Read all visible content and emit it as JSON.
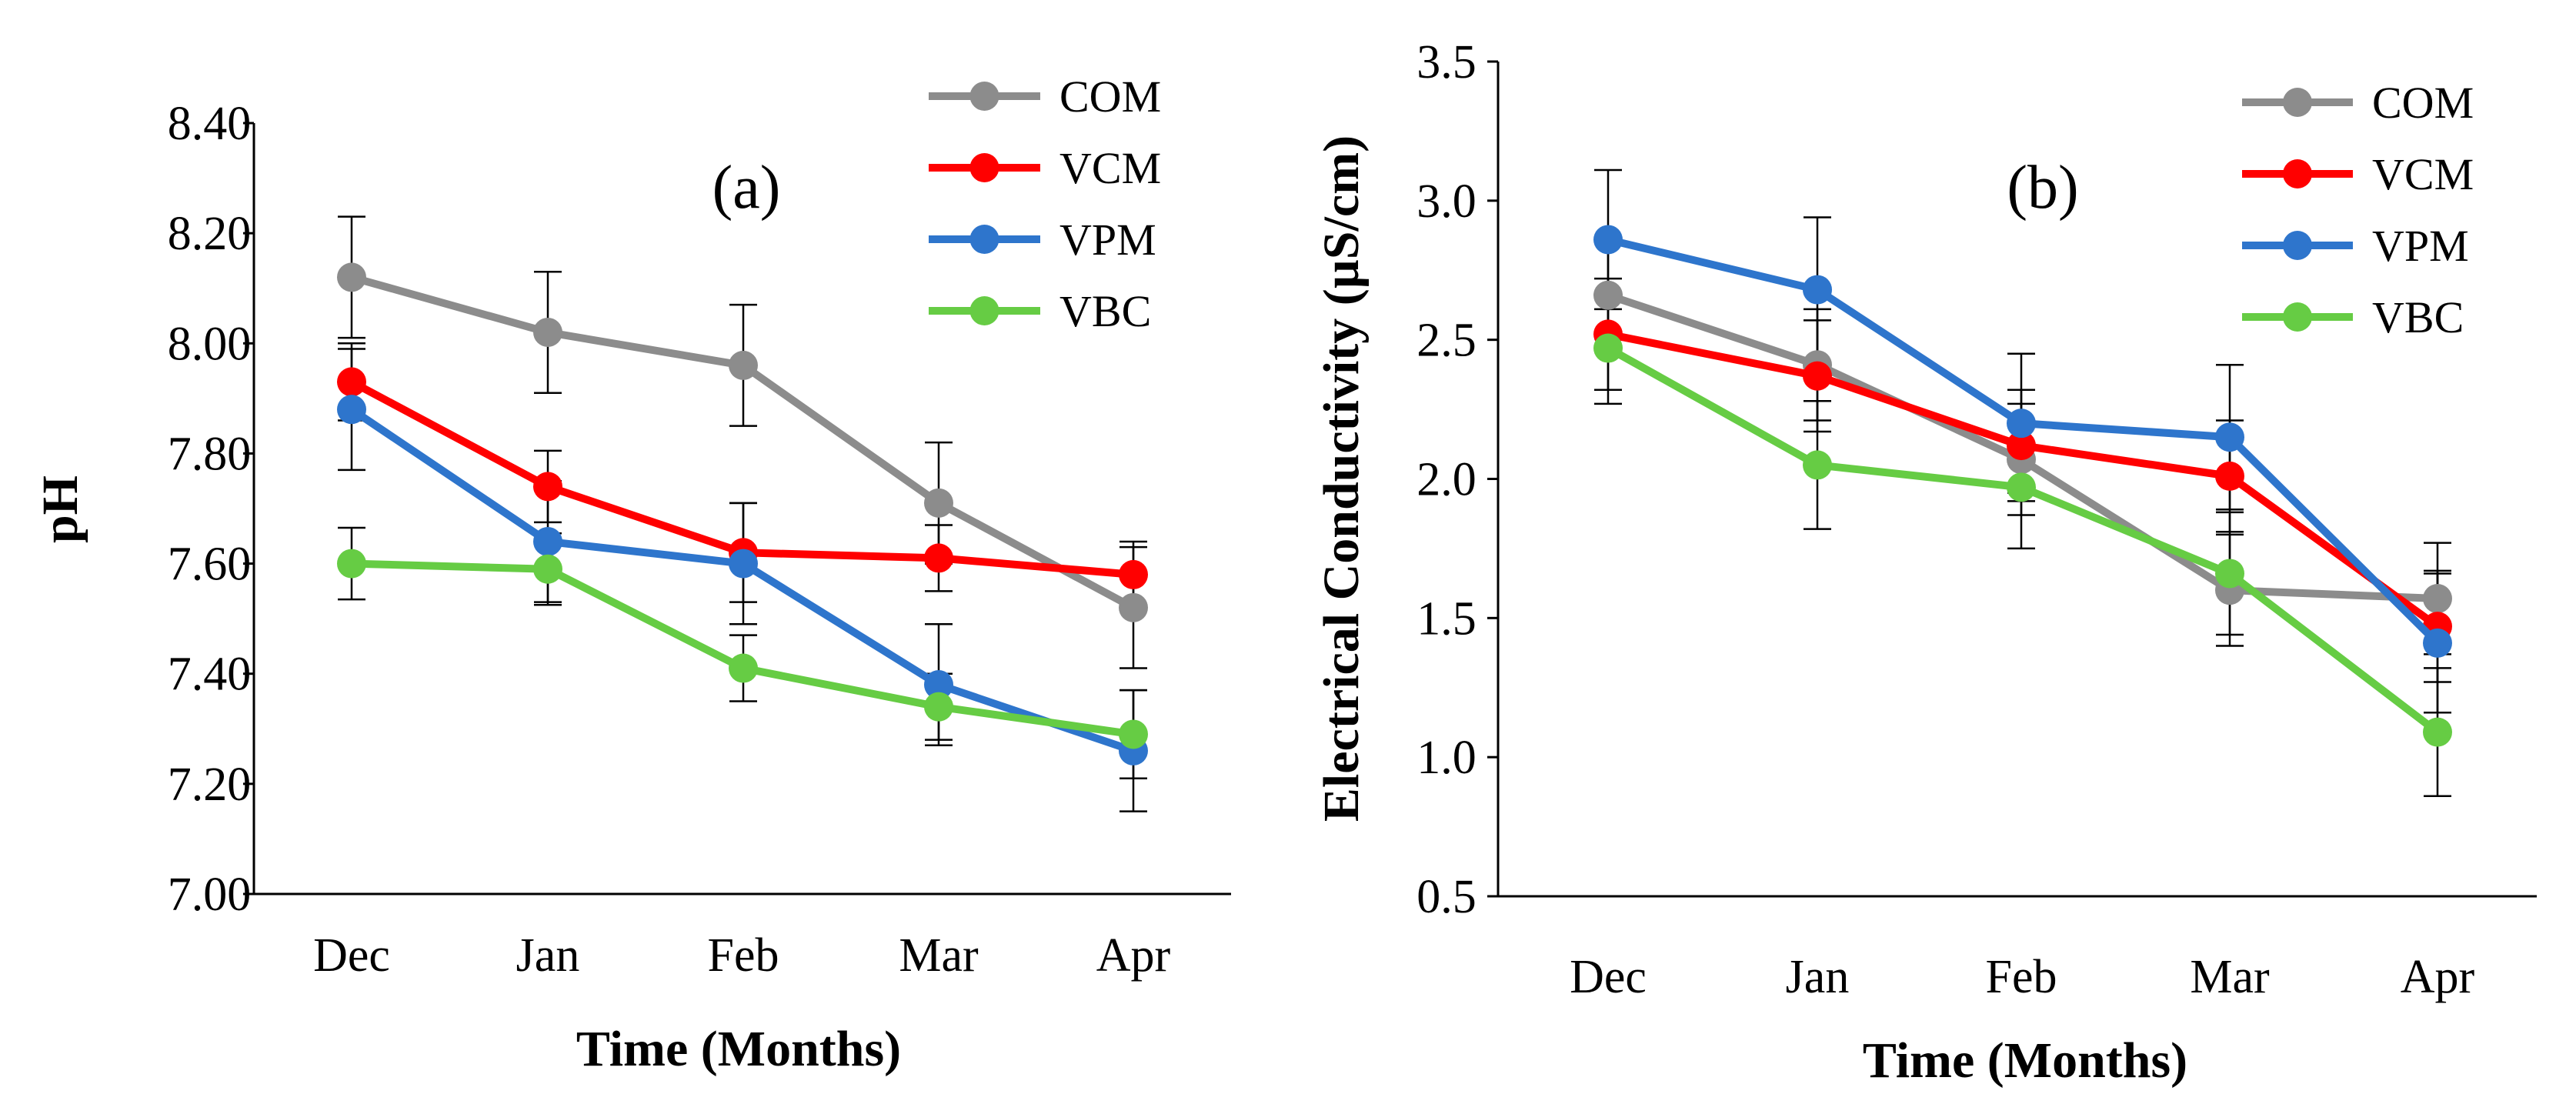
{
  "chart_data": [
    {
      "type": "line",
      "panel_label": "(a)",
      "categories": [
        "Dec",
        "Jan",
        "Feb",
        "Mar",
        "Apr"
      ],
      "xlabel": "Time (Months)",
      "ylabel": "pH",
      "ylim": [
        7.0,
        8.4
      ],
      "yticks": [
        "7.00",
        "7.20",
        "7.40",
        "7.60",
        "7.80",
        "8.00",
        "8.20",
        "8.40"
      ],
      "ytick_values": [
        7.0,
        7.2,
        7.4,
        7.6,
        7.8,
        8.0,
        8.2,
        8.4
      ],
      "legend_position": "top-right",
      "series": [
        {
          "name": "COM",
          "color": "#8c8c8c",
          "values": [
            8.12,
            8.02,
            7.96,
            7.71,
            7.52
          ],
          "errors": [
            0.11,
            0.11,
            0.11,
            0.11,
            0.11
          ]
        },
        {
          "name": "VCM",
          "color": "#ff0000",
          "values": [
            7.93,
            7.74,
            7.62,
            7.61,
            7.58
          ],
          "errors": [
            0.07,
            0.065,
            0.09,
            0.06,
            0.06
          ]
        },
        {
          "name": "VPM",
          "color": "#2e75cc",
          "values": [
            7.88,
            7.64,
            7.6,
            7.38,
            7.26
          ],
          "errors": [
            0.11,
            0.11,
            0.11,
            0.11,
            0.11
          ]
        },
        {
          "name": "VBC",
          "color": "#66cc44",
          "values": [
            7.6,
            7.59,
            7.41,
            7.34,
            7.29
          ],
          "errors": [
            0.065,
            0.065,
            0.06,
            0.06,
            0.08
          ]
        }
      ]
    },
    {
      "type": "line",
      "panel_label": "(b)",
      "categories": [
        "Dec",
        "Jan",
        "Feb",
        "Mar",
        "Apr"
      ],
      "xlabel": "Time (Months)",
      "ylabel": "Electrical Conductivity (µS/cm)",
      "ylim": [
        0.5,
        3.5
      ],
      "yticks": [
        "0.5",
        "1.0",
        "1.5",
        "2.0",
        "2.5",
        "3.0",
        "3.5"
      ],
      "ytick_values": [
        0.5,
        1.0,
        1.5,
        2.0,
        2.5,
        3.0,
        3.5
      ],
      "legend_position": "top-right",
      "series": [
        {
          "name": "COM",
          "color": "#8c8c8c",
          "values": [
            2.66,
            2.41,
            2.07,
            1.6,
            1.57
          ],
          "errors": [
            0.2,
            0.2,
            0.2,
            0.2,
            0.2
          ]
        },
        {
          "name": "VCM",
          "color": "#ff0000",
          "values": [
            2.52,
            2.37,
            2.12,
            2.01,
            1.47
          ],
          "errors": [
            0.2,
            0.2,
            0.2,
            0.2,
            0.2
          ]
        },
        {
          "name": "VPM",
          "color": "#2e75cc",
          "values": [
            2.86,
            2.68,
            2.2,
            2.15,
            1.41
          ],
          "errors": [
            0.25,
            0.26,
            0.25,
            0.26,
            0.25
          ]
        },
        {
          "name": "VBC",
          "color": "#66cc44",
          "values": [
            2.47,
            2.05,
            1.97,
            1.66,
            1.09
          ],
          "errors": [
            0.2,
            0.23,
            0.22,
            0.22,
            0.23
          ]
        }
      ]
    }
  ]
}
